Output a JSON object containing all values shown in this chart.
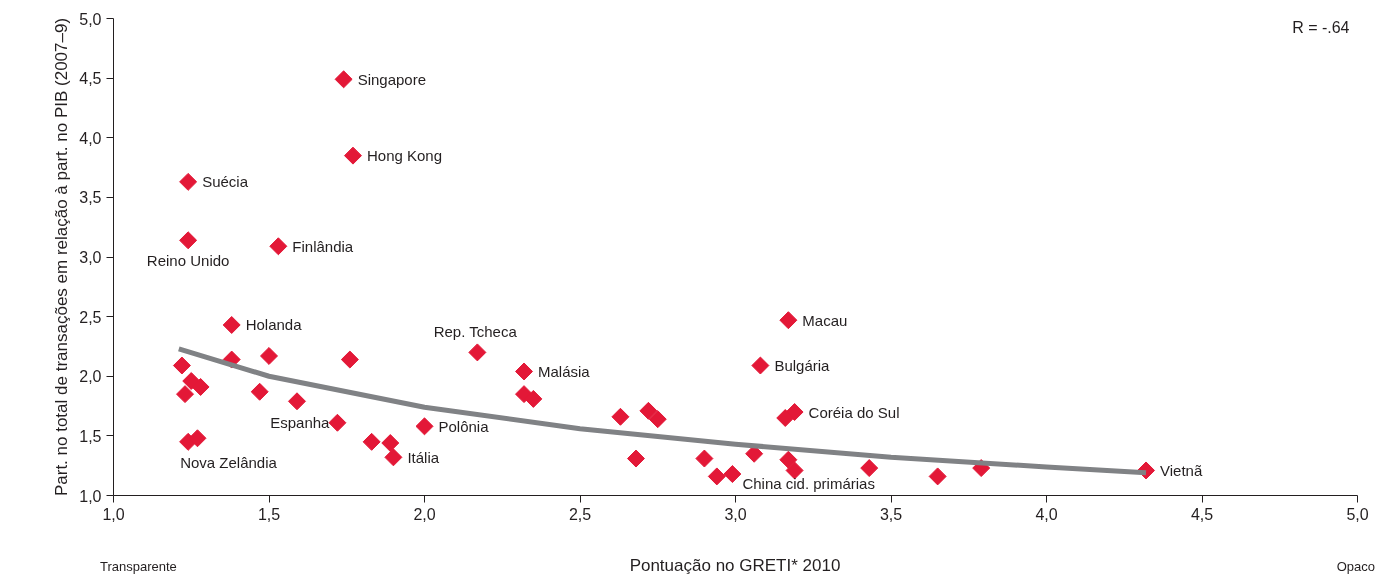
{
  "chart_data": {
    "type": "scatter",
    "xlabel": "Pontuação no GRETI* 2010",
    "ylabel": "Part. no total de transações em relação à part. no PIB (2007–9)",
    "xlim": [
      1.0,
      5.0
    ],
    "ylim": [
      1.0,
      5.0
    ],
    "xticks": [
      {
        "value": 1.0,
        "label": "1,0"
      },
      {
        "value": 1.5,
        "label": "1,5"
      },
      {
        "value": 2.0,
        "label": "2,0"
      },
      {
        "value": 2.5,
        "label": "2,5"
      },
      {
        "value": 3.0,
        "label": "3,0"
      },
      {
        "value": 3.5,
        "label": "3,5"
      },
      {
        "value": 4.0,
        "label": "4,0"
      },
      {
        "value": 4.5,
        "label": "4,5"
      },
      {
        "value": 5.0,
        "label": "5,0"
      }
    ],
    "yticks": [
      {
        "value": 1.0,
        "label": "1,0"
      },
      {
        "value": 1.5,
        "label": "1,5"
      },
      {
        "value": 2.0,
        "label": "2,0"
      },
      {
        "value": 2.5,
        "label": "2,5"
      },
      {
        "value": 3.0,
        "label": "3,0"
      },
      {
        "value": 3.5,
        "label": "3,5"
      },
      {
        "value": 4.0,
        "label": "4,0"
      },
      {
        "value": 4.5,
        "label": "4,5"
      },
      {
        "value": 5.0,
        "label": "5,0"
      }
    ],
    "grid": false,
    "series": [
      {
        "marker": "diamond",
        "color": "#e31837",
        "x": [
          1.74,
          1.77,
          1.24,
          1.24,
          1.53,
          1.38,
          1.22,
          1.25,
          1.28,
          1.23,
          1.38,
          1.5,
          1.47,
          1.59,
          1.76,
          1.72,
          1.24,
          1.27,
          1.83,
          1.89,
          1.9,
          2.0,
          2.17,
          2.32,
          2.32,
          2.35,
          2.63,
          2.72,
          2.75,
          2.68,
          2.9,
          2.94,
          2.99,
          3.06,
          3.08,
          3.17,
          3.19,
          3.16,
          3.17,
          3.19,
          3.43,
          3.65,
          3.79,
          4.32
        ],
        "values": [
          4.49,
          3.85,
          3.63,
          3.14,
          3.09,
          2.43,
          2.09,
          1.96,
          1.91,
          1.85,
          2.14,
          2.17,
          1.87,
          1.79,
          2.14,
          1.61,
          1.45,
          1.48,
          1.45,
          1.44,
          1.32,
          1.58,
          2.2,
          2.04,
          1.85,
          1.81,
          1.66,
          1.71,
          1.64,
          1.31,
          1.31,
          1.16,
          1.18,
          1.35,
          2.09,
          2.47,
          1.7,
          1.65,
          1.3,
          1.21,
          1.23,
          1.16,
          1.23,
          1.21
        ]
      },
      {
        "type": "line",
        "color": "#808285",
        "x": [
          1.21,
          1.5,
          2.0,
          2.5,
          3.0,
          3.5,
          4.0,
          4.32
        ],
        "values": [
          2.23,
          2.0,
          1.74,
          1.56,
          1.43,
          1.32,
          1.24,
          1.19
        ]
      }
    ],
    "annotations": [
      "R = -.64",
      "Transparente",
      "Opaco",
      {
        "text": "Singapore",
        "x": 1.74,
        "y": 4.49
      },
      {
        "text": "Hong Kong",
        "x": 1.77,
        "y": 3.85
      },
      {
        "text": "Suécia",
        "x": 1.24,
        "y": 3.63
      },
      {
        "text": "Reino Unido",
        "x": 1.24,
        "y": 3.14
      },
      {
        "text": "Finlândia",
        "x": 1.53,
        "y": 3.09
      },
      {
        "text": "Holanda",
        "x": 1.38,
        "y": 2.43
      },
      {
        "text": "Rep. Tcheca",
        "x": 2.17,
        "y": 2.2
      },
      {
        "text": "Malásia",
        "x": 2.32,
        "y": 2.04
      },
      {
        "text": "Espanha",
        "x": 1.72,
        "y": 1.61
      },
      {
        "text": "Polônia",
        "x": 2.0,
        "y": 1.58
      },
      {
        "text": "Itália",
        "x": 1.9,
        "y": 1.32
      },
      {
        "text": "Nova Zelândia",
        "x": 1.24,
        "y": 1.45
      },
      {
        "text": "Macau",
        "x": 3.17,
        "y": 2.47
      },
      {
        "text": "Bulgária",
        "x": 3.08,
        "y": 2.09
      },
      {
        "text": "Coréia do Sul",
        "x": 3.19,
        "y": 1.7
      },
      {
        "text": "China cid. primárias",
        "x": 2.99,
        "y": 1.18
      },
      {
        "text": "Vietnã",
        "x": 4.32,
        "y": 1.21
      }
    ]
  }
}
